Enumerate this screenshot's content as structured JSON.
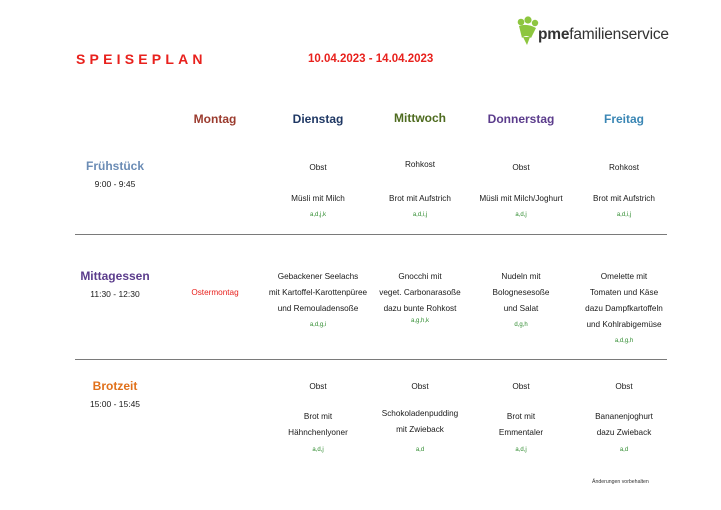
{
  "header": {
    "title": "SPEISEPLAN",
    "date_range": "10.04.2023 - 14.04.2023",
    "logo_text_bold": "pme",
    "logo_text_rest": "familienservice",
    "brand_color": "#8dc63f",
    "accent_color": "#e8211d"
  },
  "days": [
    {
      "label": "Montag",
      "color": "#9b3b2e"
    },
    {
      "label": "Dienstag",
      "color": "#1f3864"
    },
    {
      "label": "Mittwoch",
      "color": "#4e6b1f"
    },
    {
      "label": "Donnerstag",
      "color": "#5b3c8c"
    },
    {
      "label": "Freitag",
      "color": "#3a86b4"
    }
  ],
  "meals": {
    "breakfast": {
      "name": "Frühstück",
      "time": "9:00 - 9:45",
      "color": "#6b8cb5",
      "line1": [
        "",
        "Obst",
        "Rohkost",
        "Obst",
        "Rohkost"
      ],
      "line2": [
        "",
        "Müsli mit Milch",
        "Brot mit Aufstrich",
        "Müsli mit Milch/Joghurt",
        "Brot mit Aufstrich"
      ],
      "allergens": [
        "",
        "a,d,j,k",
        "a,d,i,j",
        "a,d,j",
        "a,d,i,j"
      ]
    },
    "lunch": {
      "name": "Mittagessen",
      "time": "11:30 - 12:30",
      "color": "#5b3c8c",
      "monday_note": "Ostermontag",
      "tuesday": [
        "Gebackener Seelachs",
        "mit Kartoffel-Karottenpüree",
        "und Remouladensoße"
      ],
      "tuesday_alg": "a,d,g,i",
      "wednesday": [
        "Gnocchi mit",
        "veget. Carbonarasoße",
        "dazu bunte Rohkost"
      ],
      "wednesday_alg": "a,g,h,k",
      "thursday": [
        "Nudeln mit",
        "Bolognesesoße",
        "und Salat"
      ],
      "thursday_alg": "d,g,h",
      "friday": [
        "Omelette mit",
        "Tomaten und Käse",
        "dazu Dampfkartoffeln",
        "und Kohlrabigemüse"
      ],
      "friday_alg": "a,d,g,h"
    },
    "snack": {
      "name": "Brotzeit",
      "time": "15:00 - 15:45",
      "color": "#e0701a",
      "line1": [
        "",
        "Obst",
        "Obst",
        "Obst",
        "Obst"
      ],
      "tuesday": [
        "Brot mit",
        "Hähnchenlyoner"
      ],
      "wednesday": [
        "Schokoladenpudding",
        "mit Zwieback"
      ],
      "thursday": [
        "Brot mit",
        "Emmentaler"
      ],
      "friday": [
        "Bananenjoghurt",
        "dazu Zwieback"
      ],
      "allergens": [
        "",
        "a,d,j",
        "a,d",
        "a,d,j",
        "a,d"
      ]
    }
  },
  "footer_note": "Änderungen vorbehalten"
}
